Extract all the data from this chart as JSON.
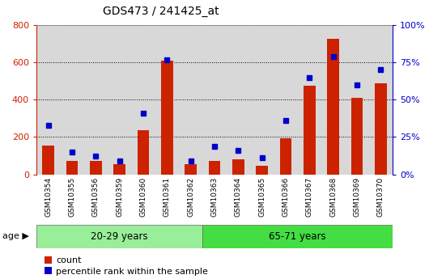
{
  "title": "GDS473 / 241425_at",
  "categories": [
    "GSM10354",
    "GSM10355",
    "GSM10356",
    "GSM10359",
    "GSM10360",
    "GSM10361",
    "GSM10362",
    "GSM10363",
    "GSM10364",
    "GSM10365",
    "GSM10366",
    "GSM10367",
    "GSM10368",
    "GSM10369",
    "GSM10370"
  ],
  "count_values": [
    155,
    70,
    70,
    55,
    235,
    610,
    55,
    70,
    80,
    48,
    195,
    475,
    725,
    410,
    490
  ],
  "percentile_values": [
    33,
    15,
    12,
    9,
    41,
    77,
    9,
    19,
    16,
    11,
    36,
    65,
    79,
    60,
    70
  ],
  "group1_label": "20-29 years",
  "group2_label": "65-71 years",
  "group1_count": 7,
  "group1_color": "#99ee99",
  "group2_color": "#44dd44",
  "bar_color": "#cc2200",
  "dot_color": "#0000cc",
  "left_ylim": [
    0,
    800
  ],
  "right_ylim": [
    0,
    100
  ],
  "left_yticks": [
    0,
    200,
    400,
    600,
    800
  ],
  "right_yticks": [
    0,
    25,
    50,
    75,
    100
  ],
  "right_yticklabels": [
    "0%",
    "25%",
    "50%",
    "75%",
    "100%"
  ],
  "age_label": "age",
  "legend_count": "count",
  "legend_percentile": "percentile rank within the sample",
  "grid_color": "#000000",
  "plot_bg": "#d8d8d8",
  "fig_bg": "#ffffff"
}
